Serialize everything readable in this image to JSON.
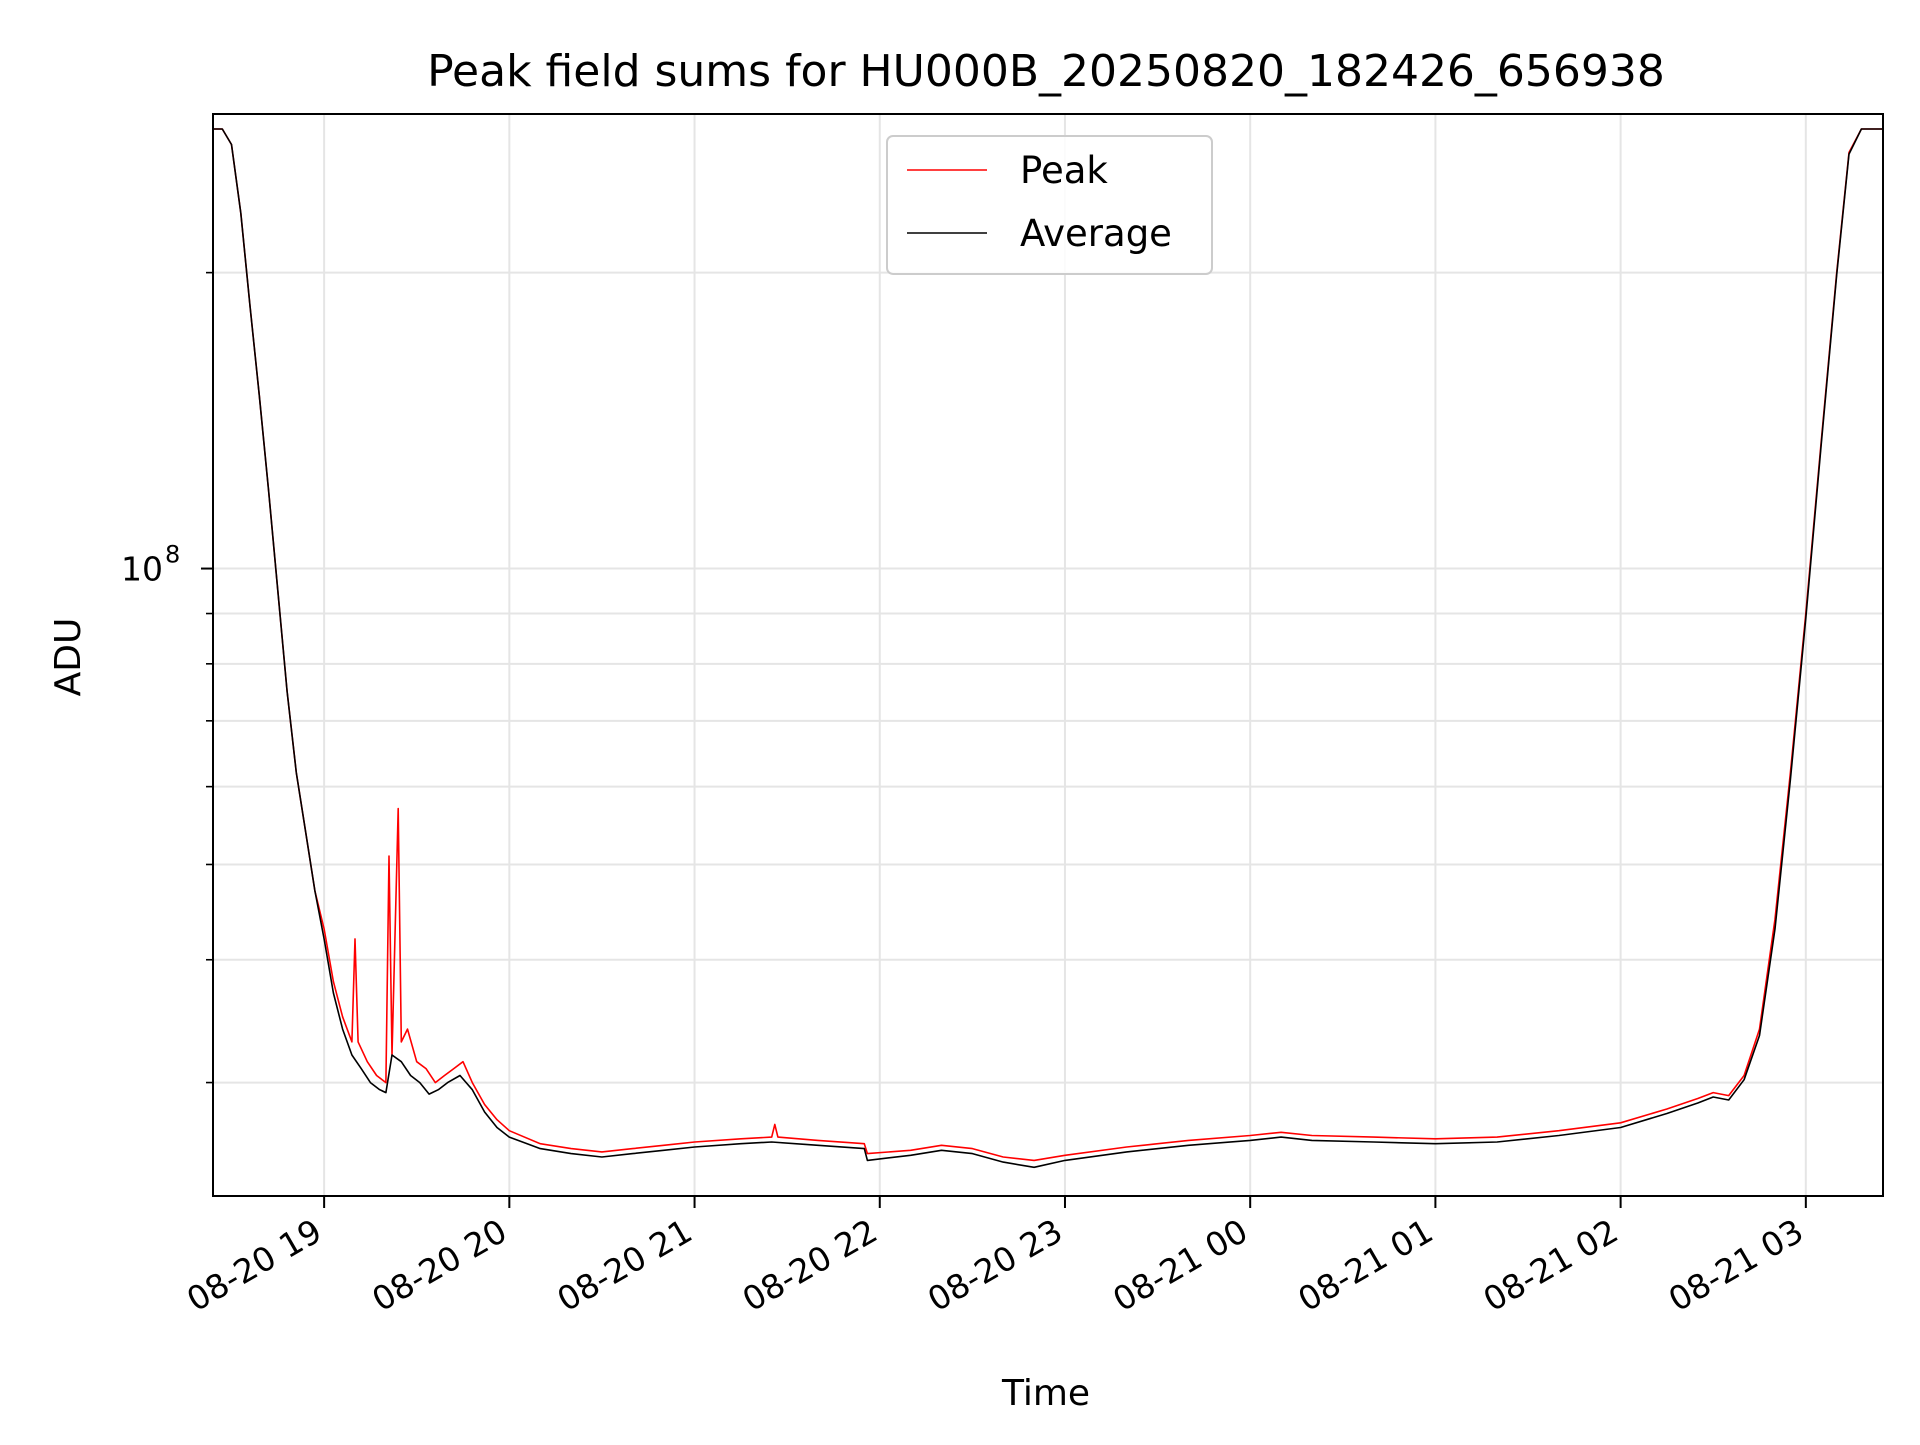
{
  "chart_data": {
    "type": "line",
    "title": "Peak field sums for HU000B_20250820_182426_656938",
    "xlabel": "Time",
    "ylabel": "ADU",
    "y_scale": "log",
    "grid": true,
    "legend_placement": "upper-center",
    "x_tick_labels": [
      "08-20 19",
      "08-20 20",
      "08-20 21",
      "08-20 22",
      "08-20 23",
      "08-21 00",
      "08-21 01",
      "08-21 02",
      "08-21 03"
    ],
    "y_tick_label_base": "10",
    "y_tick_label_exponent": "8",
    "xlim": [
      "2025-08-20 18:24",
      "2025-08-21 03:25"
    ],
    "ylim": [
      23000000,
      290000000
    ],
    "series": [
      {
        "name": "Peak",
        "color": "#ff0000",
        "points": [
          [
            "2025-08-20 18:24",
            280000000
          ],
          [
            "2025-08-20 18:27",
            280000000
          ],
          [
            "2025-08-20 18:30",
            270000000
          ],
          [
            "2025-08-20 18:33",
            230000000
          ],
          [
            "2025-08-20 18:36",
            185000000
          ],
          [
            "2025-08-20 18:39",
            150000000
          ],
          [
            "2025-08-20 18:42",
            120000000
          ],
          [
            "2025-08-20 18:45",
            95000000
          ],
          [
            "2025-08-20 18:48",
            75000000
          ],
          [
            "2025-08-20 18:51",
            62000000
          ],
          [
            "2025-08-20 18:54",
            54000000
          ],
          [
            "2025-08-20 18:57",
            47000000
          ],
          [
            "2025-08-20 19:00",
            43000000
          ],
          [
            "2025-08-20 19:03",
            38000000
          ],
          [
            "2025-08-20 19:06",
            35000000
          ],
          [
            "2025-08-20 19:09",
            33000000
          ],
          [
            "2025-08-20 19:10",
            42000000
          ],
          [
            "2025-08-20 19:11",
            33000000
          ],
          [
            "2025-08-20 19:14",
            31500000
          ],
          [
            "2025-08-20 19:17",
            30500000
          ],
          [
            "2025-08-20 19:20",
            30000000
          ],
          [
            "2025-08-20 19:21",
            51000000
          ],
          [
            "2025-08-20 19:22",
            32000000
          ],
          [
            "2025-08-20 19:24",
            57000000
          ],
          [
            "2025-08-20 19:25",
            33000000
          ],
          [
            "2025-08-20 19:27",
            34000000
          ],
          [
            "2025-08-20 19:30",
            31500000
          ],
          [
            "2025-08-20 19:33",
            31000000
          ],
          [
            "2025-08-20 19:36",
            30000000
          ],
          [
            "2025-08-20 19:39",
            30500000
          ],
          [
            "2025-08-20 19:42",
            31000000
          ],
          [
            "2025-08-20 19:45",
            31500000
          ],
          [
            "2025-08-20 19:48",
            30000000
          ],
          [
            "2025-08-20 19:52",
            28500000
          ],
          [
            "2025-08-20 19:56",
            27500000
          ],
          [
            "2025-08-20 20:00",
            26800000
          ],
          [
            "2025-08-20 20:10",
            26000000
          ],
          [
            "2025-08-20 20:20",
            25700000
          ],
          [
            "2025-08-20 20:30",
            25500000
          ],
          [
            "2025-08-20 20:40",
            25700000
          ],
          [
            "2025-08-20 20:50",
            25900000
          ],
          [
            "2025-08-20 21:00",
            26100000
          ],
          [
            "2025-08-20 21:15",
            26300000
          ],
          [
            "2025-08-20 21:25",
            26400000
          ],
          [
            "2025-08-20 21:26",
            27200000
          ],
          [
            "2025-08-20 21:27",
            26400000
          ],
          [
            "2025-08-20 21:40",
            26200000
          ],
          [
            "2025-08-20 21:55",
            26000000
          ],
          [
            "2025-08-20 21:56",
            25400000
          ],
          [
            "2025-08-20 22:10",
            25600000
          ],
          [
            "2025-08-20 22:20",
            25900000
          ],
          [
            "2025-08-20 22:30",
            25700000
          ],
          [
            "2025-08-20 22:40",
            25200000
          ],
          [
            "2025-08-20 22:50",
            25000000
          ],
          [
            "2025-08-20 23:00",
            25300000
          ],
          [
            "2025-08-20 23:20",
            25800000
          ],
          [
            "2025-08-20 23:40",
            26200000
          ],
          [
            "2025-08-21 00:00",
            26500000
          ],
          [
            "2025-08-21 00:10",
            26700000
          ],
          [
            "2025-08-21 00:20",
            26500000
          ],
          [
            "2025-08-21 00:40",
            26400000
          ],
          [
            "2025-08-21 01:00",
            26300000
          ],
          [
            "2025-08-21 01:20",
            26400000
          ],
          [
            "2025-08-21 01:40",
            26800000
          ],
          [
            "2025-08-21 02:00",
            27300000
          ],
          [
            "2025-08-21 02:15",
            28200000
          ],
          [
            "2025-08-21 02:25",
            28900000
          ],
          [
            "2025-08-21 02:30",
            29300000
          ],
          [
            "2025-08-21 02:35",
            29100000
          ],
          [
            "2025-08-21 02:40",
            30500000
          ],
          [
            "2025-08-21 02:45",
            34000000
          ],
          [
            "2025-08-21 02:50",
            44000000
          ],
          [
            "2025-08-21 02:55",
            62000000
          ],
          [
            "2025-08-21 03:00",
            90000000
          ],
          [
            "2025-08-21 03:05",
            135000000
          ],
          [
            "2025-08-21 03:10",
            200000000
          ],
          [
            "2025-08-21 03:14",
            265000000
          ],
          [
            "2025-08-21 03:18",
            280000000
          ],
          [
            "2025-08-21 03:25",
            280000000
          ]
        ]
      },
      {
        "name": "Average",
        "color": "#000000",
        "points": [
          [
            "2025-08-20 18:24",
            280000000
          ],
          [
            "2025-08-20 18:27",
            280000000
          ],
          [
            "2025-08-20 18:30",
            270000000
          ],
          [
            "2025-08-20 18:33",
            230000000
          ],
          [
            "2025-08-20 18:36",
            185000000
          ],
          [
            "2025-08-20 18:39",
            150000000
          ],
          [
            "2025-08-20 18:42",
            120000000
          ],
          [
            "2025-08-20 18:45",
            95000000
          ],
          [
            "2025-08-20 18:48",
            75000000
          ],
          [
            "2025-08-20 18:51",
            62000000
          ],
          [
            "2025-08-20 18:54",
            54000000
          ],
          [
            "2025-08-20 18:57",
            47000000
          ],
          [
            "2025-08-20 19:00",
            42000000
          ],
          [
            "2025-08-20 19:03",
            37000000
          ],
          [
            "2025-08-20 19:06",
            34000000
          ],
          [
            "2025-08-20 19:09",
            32000000
          ],
          [
            "2025-08-20 19:12",
            31000000
          ],
          [
            "2025-08-20 19:15",
            30000000
          ],
          [
            "2025-08-20 19:18",
            29500000
          ],
          [
            "2025-08-20 19:20",
            29300000
          ],
          [
            "2025-08-20 19:22",
            32000000
          ],
          [
            "2025-08-20 19:25",
            31500000
          ],
          [
            "2025-08-20 19:28",
            30500000
          ],
          [
            "2025-08-20 19:31",
            30000000
          ],
          [
            "2025-08-20 19:34",
            29200000
          ],
          [
            "2025-08-20 19:37",
            29500000
          ],
          [
            "2025-08-20 19:40",
            30000000
          ],
          [
            "2025-08-20 19:44",
            30500000
          ],
          [
            "2025-08-20 19:48",
            29500000
          ],
          [
            "2025-08-20 19:52",
            28000000
          ],
          [
            "2025-08-20 19:56",
            27000000
          ],
          [
            "2025-08-20 20:00",
            26400000
          ],
          [
            "2025-08-20 20:10",
            25700000
          ],
          [
            "2025-08-20 20:20",
            25400000
          ],
          [
            "2025-08-20 20:30",
            25200000
          ],
          [
            "2025-08-20 20:40",
            25400000
          ],
          [
            "2025-08-20 20:50",
            25600000
          ],
          [
            "2025-08-20 21:00",
            25800000
          ],
          [
            "2025-08-20 21:15",
            26000000
          ],
          [
            "2025-08-20 21:25",
            26100000
          ],
          [
            "2025-08-20 21:40",
            25900000
          ],
          [
            "2025-08-20 21:55",
            25700000
          ],
          [
            "2025-08-20 21:56",
            25000000
          ],
          [
            "2025-08-20 22:10",
            25300000
          ],
          [
            "2025-08-20 22:20",
            25600000
          ],
          [
            "2025-08-20 22:30",
            25400000
          ],
          [
            "2025-08-20 22:40",
            24900000
          ],
          [
            "2025-08-20 22:50",
            24600000
          ],
          [
            "2025-08-20 23:00",
            25000000
          ],
          [
            "2025-08-20 23:20",
            25500000
          ],
          [
            "2025-08-20 23:40",
            25900000
          ],
          [
            "2025-08-21 00:00",
            26200000
          ],
          [
            "2025-08-21 00:10",
            26400000
          ],
          [
            "2025-08-21 00:20",
            26200000
          ],
          [
            "2025-08-21 00:40",
            26100000
          ],
          [
            "2025-08-21 01:00",
            26000000
          ],
          [
            "2025-08-21 01:20",
            26100000
          ],
          [
            "2025-08-21 01:40",
            26500000
          ],
          [
            "2025-08-21 02:00",
            27000000
          ],
          [
            "2025-08-21 02:15",
            27900000
          ],
          [
            "2025-08-21 02:25",
            28600000
          ],
          [
            "2025-08-21 02:30",
            29000000
          ],
          [
            "2025-08-21 02:35",
            28800000
          ],
          [
            "2025-08-21 02:40",
            30200000
          ],
          [
            "2025-08-21 02:45",
            33500000
          ],
          [
            "2025-08-21 02:50",
            43000000
          ],
          [
            "2025-08-21 02:55",
            61000000
          ],
          [
            "2025-08-21 03:00",
            89000000
          ],
          [
            "2025-08-21 03:05",
            134000000
          ],
          [
            "2025-08-21 03:10",
            199000000
          ],
          [
            "2025-08-21 03:14",
            264000000
          ],
          [
            "2025-08-21 03:18",
            280000000
          ],
          [
            "2025-08-21 03:25",
            280000000
          ]
        ]
      }
    ]
  }
}
